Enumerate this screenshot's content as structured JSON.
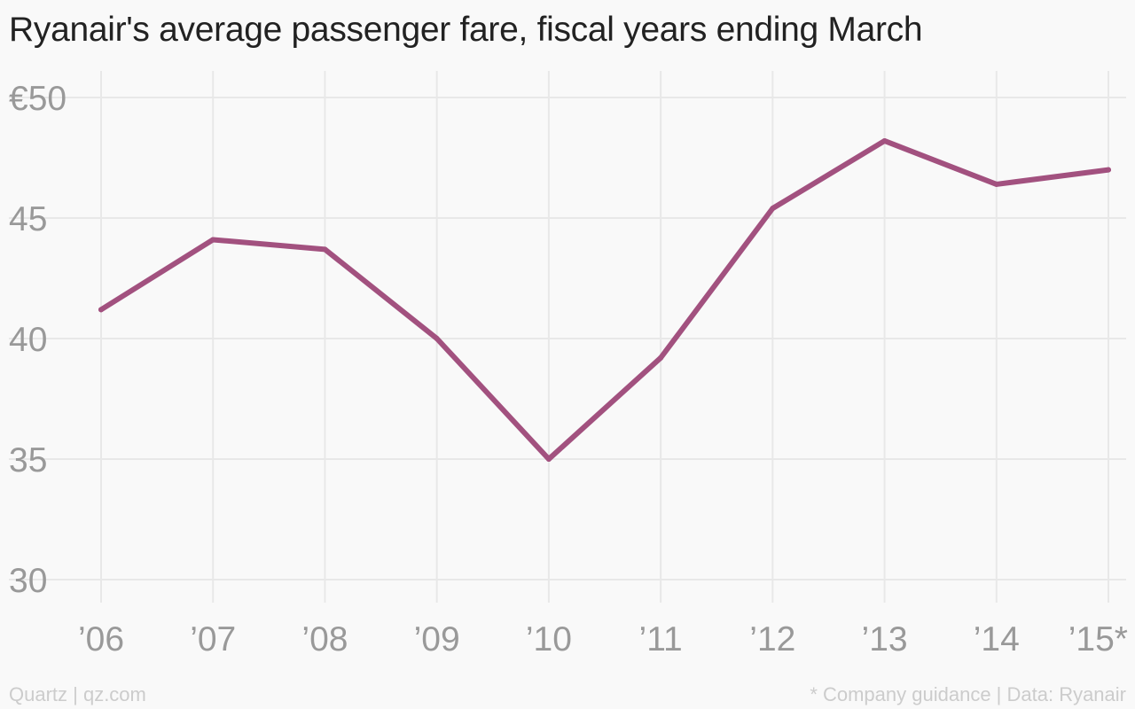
{
  "title": "Ryanair's average passenger fare, fiscal years ending March",
  "footer": {
    "source_left": "Quartz | qz.com",
    "source_right": "* Company guidance | Data: Ryanair"
  },
  "colors": {
    "line": "#a2517f",
    "grid": "#e8e8e8",
    "tick_text": "#999999",
    "title_text": "#222222",
    "background": "#f9f9f9"
  },
  "chart_data": {
    "type": "line",
    "title": "Ryanair's average passenger fare, fiscal years ending March",
    "xlabel": "",
    "ylabel": "",
    "categories": [
      "’06",
      "’07",
      "’08",
      "’09",
      "’10",
      "’11",
      "’12",
      "’13",
      "’14",
      "’15*"
    ],
    "series": [
      {
        "values": [
          41.2,
          44.1,
          43.7,
          40.0,
          35.0,
          39.2,
          45.4,
          48.2,
          46.4,
          47.0
        ]
      }
    ],
    "ylim": [
      30,
      50
    ],
    "yticks": [
      30,
      35,
      40,
      45,
      50
    ],
    "ytick_labels": [
      "30",
      "35",
      "40",
      "45",
      "€50"
    ],
    "grid": true,
    "legend": "none"
  }
}
